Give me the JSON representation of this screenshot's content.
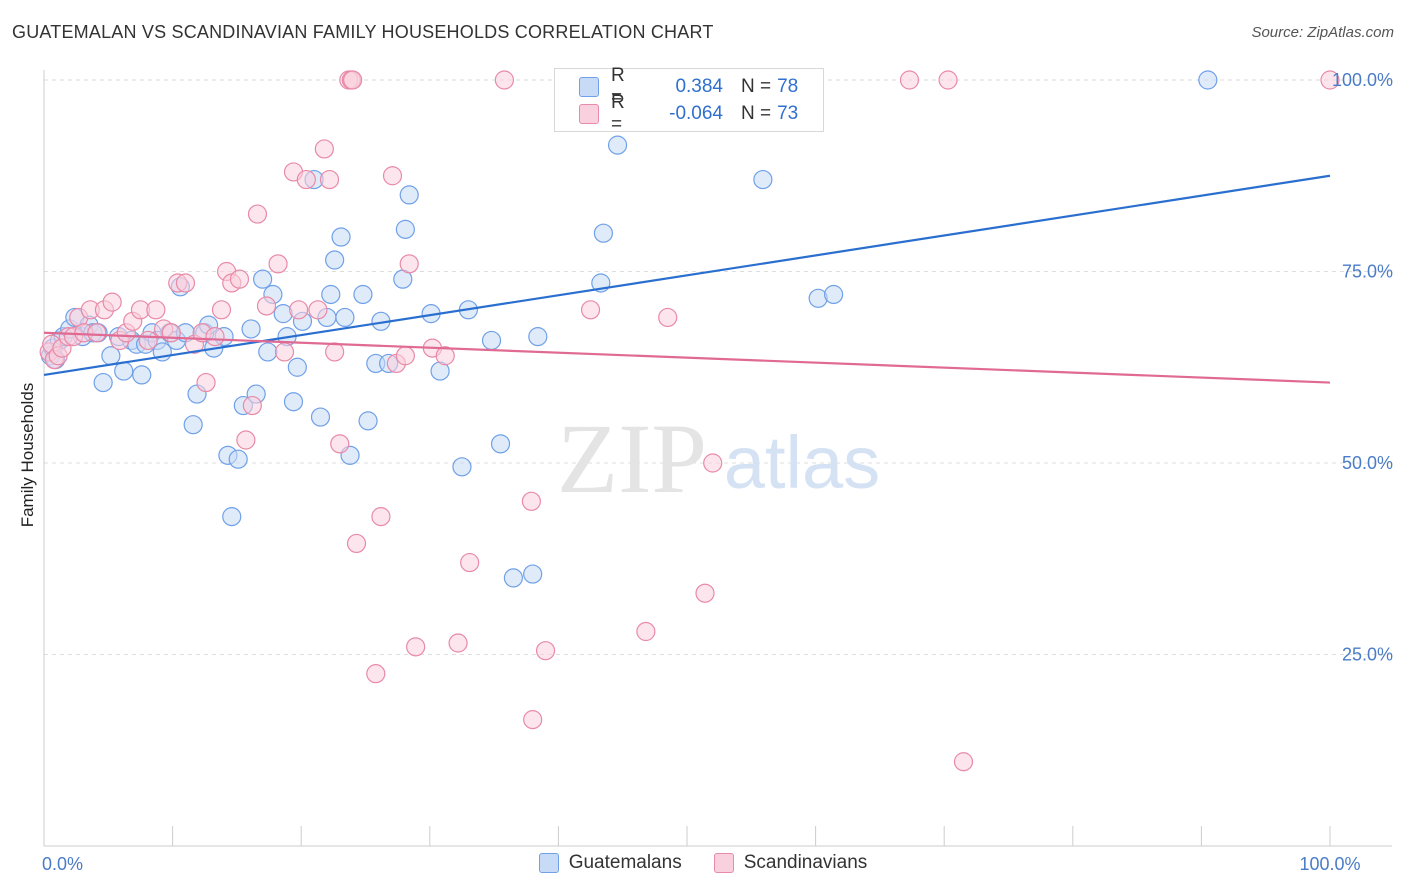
{
  "title": "GUATEMALAN VS SCANDINAVIAN FAMILY HOUSEHOLDS CORRELATION CHART",
  "source": "Source: ZipAtlas.com",
  "watermark": {
    "zip": "ZIP",
    "atlas": "atlas"
  },
  "legend": {
    "rows": [
      {
        "r_label": "R =",
        "r_value": "0.384",
        "n_label": "N =",
        "n_value": "78",
        "color": "#6fa0e8",
        "fill": "#c7dbf6"
      },
      {
        "r_label": "R =",
        "r_value": "-0.064",
        "n_label": "N =",
        "n_value": "73",
        "color": "#e88aa8",
        "fill": "#f9d0dd"
      }
    ]
  },
  "bottom_legend": [
    {
      "label": "Guatemalans",
      "color": "#6fa0e8",
      "fill": "#c7dbf6"
    },
    {
      "label": "Scandinavians",
      "color": "#e88aa8",
      "fill": "#f9d0dd"
    }
  ],
  "chart_data": {
    "type": "scatter",
    "title": "GUATEMALAN VS SCANDINAVIAN FAMILY HOUSEHOLDS CORRELATION CHART",
    "xlabel": "",
    "ylabel": "Family Households",
    "xlim": [
      0,
      100
    ],
    "ylim": [
      0,
      102
    ],
    "x_tick_labels": [
      {
        "value": 0,
        "label": "0.0%"
      },
      {
        "value": 100,
        "label": "100.0%"
      }
    ],
    "y_tick_labels": [
      {
        "value": 25,
        "label": "25.0%"
      },
      {
        "value": 50,
        "label": "50.0%"
      },
      {
        "value": 75,
        "label": "75.0%"
      },
      {
        "value": 100,
        "label": "100.0%"
      }
    ],
    "grid": true,
    "series": [
      {
        "name": "Guatemalans",
        "color": "#6fa0e8",
        "fill": "#c7dbf6",
        "trend_color": "#2a6fcf",
        "trend": [
          [
            0,
            61.5
          ],
          [
            100,
            87.5
          ]
        ],
        "points": [
          [
            0.5,
            64
          ],
          [
            0.7,
            65
          ],
          [
            0.9,
            63.5
          ],
          [
            1.2,
            66
          ],
          [
            1.5,
            66.5
          ],
          [
            2.0,
            67.5
          ],
          [
            2.4,
            69
          ],
          [
            3.0,
            66.5
          ],
          [
            3.5,
            68
          ],
          [
            3.8,
            67
          ],
          [
            4.2,
            67
          ],
          [
            4.6,
            60.5
          ],
          [
            5.2,
            64
          ],
          [
            5.8,
            66.5
          ],
          [
            6.2,
            62
          ],
          [
            6.8,
            66
          ],
          [
            7.2,
            65.5
          ],
          [
            7.6,
            61.5
          ],
          [
            7.9,
            65.5
          ],
          [
            8.4,
            67
          ],
          [
            8.8,
            66
          ],
          [
            9.2,
            64.5
          ],
          [
            9.8,
            67
          ],
          [
            10.3,
            66
          ],
          [
            10.6,
            73
          ],
          [
            11.0,
            67
          ],
          [
            11.6,
            55
          ],
          [
            11.9,
            59
          ],
          [
            12.5,
            67
          ],
          [
            12.8,
            68
          ],
          [
            13.2,
            65
          ],
          [
            14.0,
            66.5
          ],
          [
            14.3,
            51
          ],
          [
            14.6,
            43
          ],
          [
            15.1,
            50.5
          ],
          [
            15.5,
            57.5
          ],
          [
            16.1,
            67.5
          ],
          [
            16.5,
            59
          ],
          [
            17.0,
            74
          ],
          [
            17.4,
            64.5
          ],
          [
            17.8,
            72
          ],
          [
            18.6,
            69.5
          ],
          [
            18.9,
            66.5
          ],
          [
            19.4,
            58
          ],
          [
            19.7,
            62.5
          ],
          [
            20.1,
            68.5
          ],
          [
            21.0,
            87
          ],
          [
            21.5,
            56
          ],
          [
            22.0,
            69
          ],
          [
            22.3,
            72
          ],
          [
            22.6,
            76.5
          ],
          [
            23.1,
            79.5
          ],
          [
            23.4,
            69
          ],
          [
            23.8,
            51
          ],
          [
            24.8,
            72
          ],
          [
            25.2,
            55.5
          ],
          [
            25.8,
            63
          ],
          [
            26.2,
            68.5
          ],
          [
            26.8,
            63
          ],
          [
            27.9,
            74
          ],
          [
            28.1,
            80.5
          ],
          [
            28.4,
            85
          ],
          [
            30.1,
            69.5
          ],
          [
            30.8,
            62
          ],
          [
            32.5,
            49.5
          ],
          [
            33.0,
            70
          ],
          [
            34.8,
            66
          ],
          [
            35.5,
            52.5
          ],
          [
            36.5,
            35
          ],
          [
            38.0,
            35.5
          ],
          [
            38.4,
            66.5
          ],
          [
            43.3,
            73.5
          ],
          [
            43.5,
            80
          ],
          [
            44.6,
            91.5
          ],
          [
            55.9,
            87
          ],
          [
            60.2,
            71.5
          ],
          [
            61.4,
            72
          ],
          [
            90.5,
            100
          ]
        ]
      },
      {
        "name": "Scandinavians",
        "color": "#e88aa8",
        "fill": "#f9d0dd",
        "trend_color": "#e06a92",
        "trend": [
          [
            0,
            67.0
          ],
          [
            100,
            60.5
          ]
        ],
        "points": [
          [
            0.4,
            64.5
          ],
          [
            0.6,
            65.5
          ],
          [
            0.8,
            63.5
          ],
          [
            1.1,
            64
          ],
          [
            1.4,
            65
          ],
          [
            1.9,
            66.5
          ],
          [
            2.3,
            66.5
          ],
          [
            2.7,
            69
          ],
          [
            3.1,
            67
          ],
          [
            3.6,
            70
          ],
          [
            4.1,
            67
          ],
          [
            4.7,
            70
          ],
          [
            5.3,
            71
          ],
          [
            5.9,
            66
          ],
          [
            6.4,
            67
          ],
          [
            6.9,
            68.5
          ],
          [
            7.5,
            70
          ],
          [
            8.1,
            66
          ],
          [
            8.7,
            70
          ],
          [
            9.3,
            67.5
          ],
          [
            9.9,
            67
          ],
          [
            10.4,
            73.5
          ],
          [
            11.0,
            73.5
          ],
          [
            11.7,
            65.5
          ],
          [
            12.3,
            67
          ],
          [
            12.6,
            60.5
          ],
          [
            13.3,
            66.5
          ],
          [
            13.8,
            70
          ],
          [
            14.2,
            75
          ],
          [
            14.6,
            73.5
          ],
          [
            15.2,
            74
          ],
          [
            15.7,
            53
          ],
          [
            16.2,
            57.5
          ],
          [
            16.6,
            82.5
          ],
          [
            17.3,
            70.5
          ],
          [
            18.2,
            76
          ],
          [
            18.7,
            64.5
          ],
          [
            19.4,
            88
          ],
          [
            19.8,
            70
          ],
          [
            20.4,
            87
          ],
          [
            21.3,
            70
          ],
          [
            21.8,
            91
          ],
          [
            22.2,
            87
          ],
          [
            22.6,
            64.5
          ],
          [
            23.0,
            52.5
          ],
          [
            23.7,
            100
          ],
          [
            23.9,
            100
          ],
          [
            24.0,
            100
          ],
          [
            24.3,
            39.5
          ],
          [
            25.8,
            22.5
          ],
          [
            26.2,
            43
          ],
          [
            27.1,
            87.5
          ],
          [
            27.4,
            63
          ],
          [
            28.1,
            64
          ],
          [
            28.4,
            76
          ],
          [
            28.9,
            26
          ],
          [
            30.2,
            65
          ],
          [
            31.2,
            64
          ],
          [
            32.2,
            26.5
          ],
          [
            33.1,
            37
          ],
          [
            35.8,
            100
          ],
          [
            37.9,
            45
          ],
          [
            38.0,
            16.5
          ],
          [
            39.0,
            25.5
          ],
          [
            42.5,
            70
          ],
          [
            46.8,
            28
          ],
          [
            48.5,
            69
          ],
          [
            51.4,
            33
          ],
          [
            52.0,
            50
          ],
          [
            67.3,
            100
          ],
          [
            70.3,
            100
          ],
          [
            71.5,
            11
          ],
          [
            100,
            100
          ]
        ]
      }
    ]
  }
}
